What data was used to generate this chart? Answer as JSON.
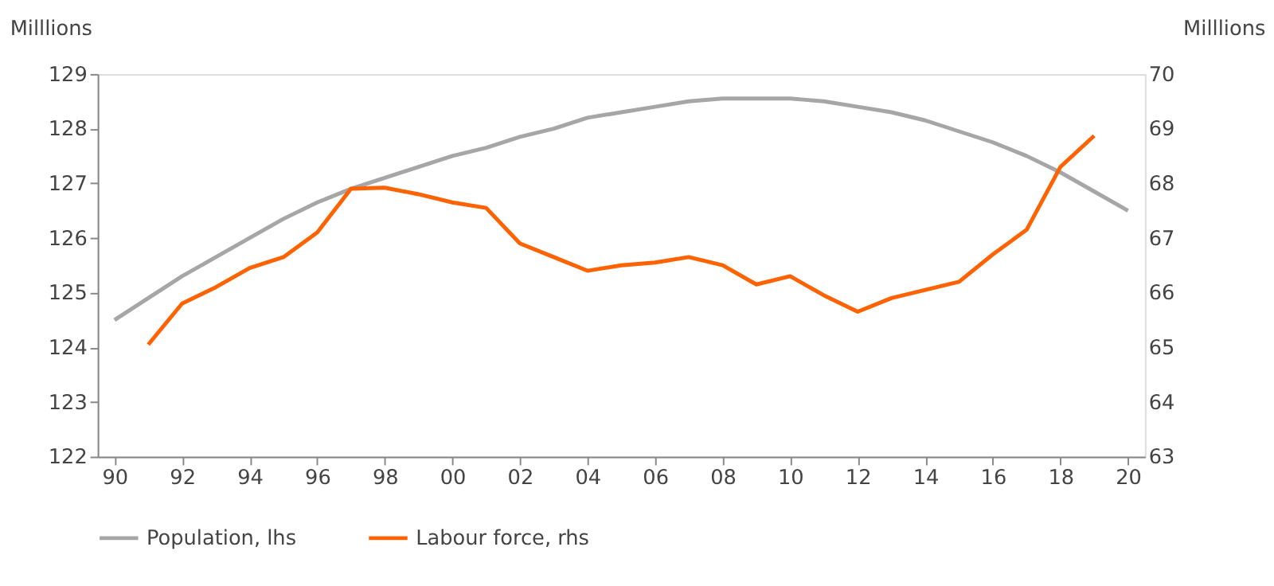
{
  "chart_data": {
    "type": "line",
    "x": [
      1990,
      1991,
      1992,
      1993,
      1994,
      1995,
      1996,
      1997,
      1998,
      1999,
      2000,
      2001,
      2002,
      2003,
      2004,
      2005,
      2006,
      2007,
      2008,
      2009,
      2010,
      2011,
      2012,
      2013,
      2014,
      2015,
      2016,
      2017,
      2018,
      2019,
      2020
    ],
    "series": [
      {
        "name": "Population, lhs",
        "color": "#a6a6a6",
        "axis": "y",
        "values": [
          124.5,
          124.9,
          125.3,
          125.65,
          126.0,
          126.35,
          126.65,
          126.9,
          127.1,
          127.3,
          127.5,
          127.65,
          127.85,
          128.0,
          128.2,
          128.3,
          128.4,
          128.5,
          128.55,
          128.55,
          128.55,
          128.5,
          128.4,
          128.3,
          128.15,
          127.95,
          127.75,
          127.5,
          127.2,
          126.85,
          126.5
        ]
      },
      {
        "name": "Labour force, rhs",
        "color": "#ff6200",
        "axis": "y2",
        "values": [
          null,
          65.05,
          65.8,
          66.1,
          66.45,
          66.65,
          67.1,
          67.9,
          67.92,
          67.8,
          67.65,
          67.55,
          66.9,
          66.65,
          66.4,
          66.5,
          66.55,
          66.65,
          66.5,
          66.15,
          66.3,
          65.95,
          65.65,
          65.9,
          66.05,
          66.2,
          66.7,
          67.15,
          68.3,
          68.87,
          null
        ]
      }
    ],
    "ylabel": "Milllions",
    "y2label": "Milllions",
    "xlim": [
      1989.5,
      2020.5
    ],
    "xticks": [
      {
        "value": 1990,
        "label": "90"
      },
      {
        "value": 1992,
        "label": "92"
      },
      {
        "value": 1994,
        "label": "94"
      },
      {
        "value": 1996,
        "label": "96"
      },
      {
        "value": 1998,
        "label": "98"
      },
      {
        "value": 2000,
        "label": "00"
      },
      {
        "value": 2002,
        "label": "02"
      },
      {
        "value": 2004,
        "label": "04"
      },
      {
        "value": 2006,
        "label": "06"
      },
      {
        "value": 2008,
        "label": "08"
      },
      {
        "value": 2010,
        "label": "10"
      },
      {
        "value": 2012,
        "label": "12"
      },
      {
        "value": 2014,
        "label": "14"
      },
      {
        "value": 2016,
        "label": "16"
      },
      {
        "value": 2018,
        "label": "18"
      },
      {
        "value": 2020,
        "label": "20"
      }
    ],
    "ylim": [
      122,
      129
    ],
    "yticks": [
      122,
      123,
      124,
      125,
      126,
      127,
      128,
      129
    ],
    "y2lim": [
      63,
      70
    ],
    "y2ticks": [
      63,
      64,
      65,
      66,
      67,
      68,
      69,
      70
    ],
    "grid": false,
    "legend": "bottom",
    "marker": "none",
    "line_style": "solid"
  }
}
